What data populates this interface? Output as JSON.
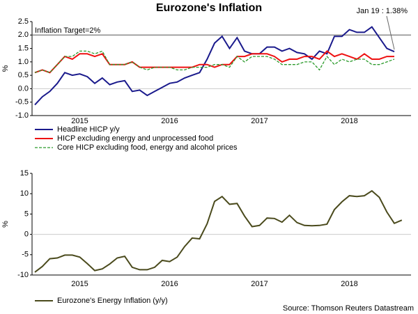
{
  "chart_data": [
    {
      "type": "line",
      "title": "Eurozone's Inflation",
      "ylabel": "%",
      "categories": [
        null,
        null,
        null,
        null,
        null,
        null,
        "2015",
        null,
        null,
        null,
        null,
        null,
        null,
        null,
        null,
        null,
        null,
        null,
        "2016",
        null,
        null,
        null,
        null,
        null,
        null,
        null,
        null,
        null,
        null,
        null,
        "2017",
        null,
        null,
        null,
        null,
        null,
        null,
        null,
        null,
        null,
        null,
        null,
        "2018",
        null,
        null,
        null,
        null,
        null,
        null
      ],
      "ylim": [
        -1,
        2.5
      ],
      "yticks": [
        {
          "value": -1,
          "label": "-1.0"
        },
        -0.5,
        {
          "value": 0,
          "label": "0.0"
        },
        0.5,
        {
          "value": 1,
          "label": "1.0"
        },
        1.5,
        {
          "value": 2,
          "label": "2.0"
        },
        2.5
      ],
      "target": 2,
      "target_label": "Inflation Target=2%",
      "annotation": "Jan 19 : 1.38%",
      "series": [
        {
          "name": "Headline HICP y/y",
          "color": "#1a1a8c",
          "dash": false,
          "values": [
            -0.6,
            -0.3,
            -0.1,
            0.2,
            0.6,
            0.5,
            0.55,
            0.45,
            0.2,
            0.4,
            0.15,
            0.25,
            0.3,
            -0.1,
            -0.05,
            -0.25,
            -0.1,
            0.05,
            0.2,
            0.25,
            0.4,
            0.5,
            0.6,
            1.1,
            1.7,
            1.95,
            1.5,
            1.9,
            1.4,
            1.3,
            1.3,
            1.55,
            1.55,
            1.4,
            1.5,
            1.35,
            1.3,
            1.1,
            1.4,
            1.3,
            1.95,
            1.95,
            2.2,
            2.1,
            2.1,
            2.3,
            1.9,
            1.5,
            1.38
          ]
        },
        {
          "name": "HICP excluding energy and unprocessed food",
          "color": "#ee1111",
          "dash": false,
          "values": [
            0.6,
            0.7,
            0.6,
            0.9,
            1.2,
            1.1,
            1.3,
            1.3,
            1.2,
            1.3,
            0.9,
            0.9,
            0.9,
            1.0,
            0.8,
            0.8,
            0.8,
            0.8,
            0.8,
            0.8,
            0.8,
            0.8,
            0.9,
            0.9,
            0.8,
            0.9,
            0.9,
            1.2,
            1.2,
            1.3,
            1.3,
            1.3,
            1.2,
            1.0,
            1.1,
            1.1,
            1.2,
            1.2,
            1.1,
            1.4,
            1.2,
            1.3,
            1.2,
            1.1,
            1.3,
            1.1,
            1.1,
            1.2,
            1.2
          ]
        },
        {
          "name": "Core HICP excluding food, energy and alcohol prices",
          "color": "#2a9a2a",
          "dash": true,
          "values": [
            0.6,
            0.7,
            0.6,
            0.9,
            1.2,
            1.2,
            1.4,
            1.4,
            1.3,
            1.4,
            0.9,
            0.9,
            0.9,
            1.0,
            0.8,
            0.7,
            0.8,
            0.8,
            0.8,
            0.7,
            0.7,
            0.8,
            0.8,
            0.8,
            0.9,
            0.9,
            0.8,
            1.2,
            1.0,
            1.2,
            1.2,
            1.2,
            1.1,
            0.9,
            0.9,
            0.9,
            1.0,
            1.0,
            0.7,
            1.2,
            0.9,
            1.1,
            1.0,
            1.1,
            1.1,
            0.9,
            0.9,
            1.0,
            1.1
          ]
        }
      ]
    },
    {
      "type": "line",
      "ylabel": "%",
      "source": "Source: Thomson Reuters Datastream",
      "categories": [
        null,
        null,
        null,
        null,
        null,
        null,
        "2015",
        null,
        null,
        null,
        null,
        null,
        null,
        null,
        null,
        null,
        null,
        null,
        "2016",
        null,
        null,
        null,
        null,
        null,
        null,
        null,
        null,
        null,
        null,
        null,
        "2017",
        null,
        null,
        null,
        null,
        null,
        null,
        null,
        null,
        null,
        null,
        null,
        "2018",
        null,
        null,
        null,
        null,
        null,
        null,
        null
      ],
      "ylim": [
        -10,
        15
      ],
      "yticks": [
        -10,
        -5,
        0,
        5,
        10,
        15
      ],
      "series": [
        {
          "name": "Eurozone's Energy Inflation (y/y)",
          "color": "#4a4a1c",
          "dash": false,
          "values": [
            -9.3,
            -7.9,
            -6.0,
            -5.8,
            -5.1,
            -5.1,
            -5.6,
            -7.2,
            -8.9,
            -8.5,
            -7.3,
            -5.8,
            -5.4,
            -8.1,
            -8.7,
            -8.7,
            -8.1,
            -6.4,
            -6.7,
            -5.6,
            -3.0,
            -0.9,
            -1.1,
            2.6,
            8.1,
            9.3,
            7.4,
            7.6,
            4.5,
            1.9,
            2.2,
            4.0,
            3.9,
            3.0,
            4.7,
            2.9,
            2.2,
            2.1,
            2.2,
            2.5,
            6.1,
            8.0,
            9.5,
            9.3,
            9.5,
            10.7,
            9.1,
            5.5,
            2.7,
            3.5
          ]
        }
      ]
    }
  ]
}
